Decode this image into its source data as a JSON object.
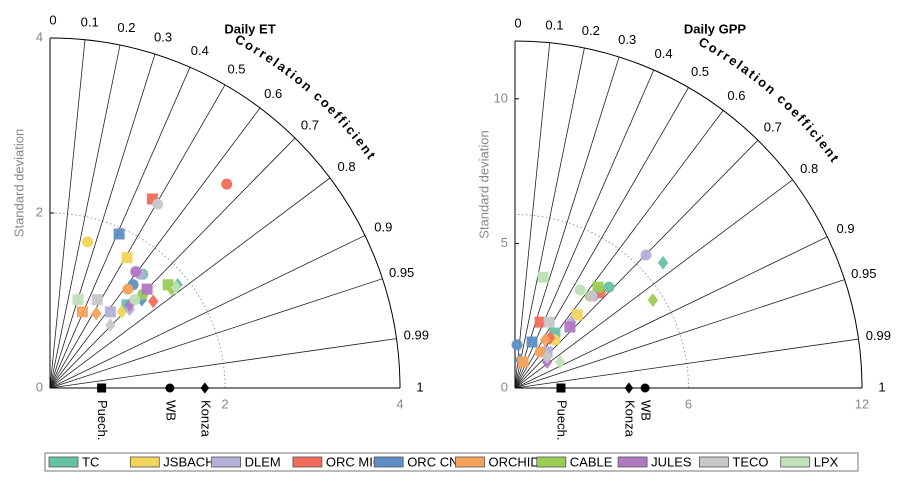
{
  "models": [
    {
      "name": "TC",
      "color": "#66c2a5"
    },
    {
      "name": "JSBACH",
      "color": "#f3d55a"
    },
    {
      "name": "DLEM",
      "color": "#b3b0d9"
    },
    {
      "name": "ORC MICT",
      "color": "#f26b5b"
    },
    {
      "name": "ORC CNP",
      "color": "#5e8fc4"
    },
    {
      "name": "ORCHIDEE",
      "color": "#f5a35a"
    },
    {
      "name": "CABLE",
      "color": "#9acd55"
    },
    {
      "name": "JULES",
      "color": "#b278c2"
    },
    {
      "name": "TECO",
      "color": "#c8c8c8"
    },
    {
      "name": "LPX",
      "color": "#bfe0b8"
    }
  ],
  "chart_data": [
    {
      "type": "taylor",
      "title": "Daily ET",
      "ylabel": "Standard deviation",
      "corr_label": "Correlation coefficient",
      "xlim": [
        0,
        4
      ],
      "xticks": [
        2,
        4
      ],
      "ylim": [
        0,
        4
      ],
      "yticks": [
        0,
        2,
        4
      ],
      "corr_ticks": [
        0,
        0.1,
        0.2,
        0.3,
        0.4,
        0.5,
        0.6,
        0.7,
        0.8,
        0.9,
        0.95,
        0.99,
        1
      ],
      "reference": {
        "names": [
          "Puech.",
          "WB",
          "Konza"
        ],
        "markers": [
          "square",
          "circle",
          "diamond"
        ],
        "values": [
          0.59,
          1.37,
          1.77
        ]
      },
      "series": [
        {
          "x": [
            0.88,
            1.06,
            1.46
          ],
          "values": [
            0.95,
            1.3,
            1.18
          ]
        },
        {
          "x": [
            0.88,
            0.43,
            0.82
          ],
          "values": [
            1.49,
            1.67,
            0.87
          ]
        },
        {
          "x": [
            0.69,
            1.03,
            0.91
          ],
          "values": [
            0.87,
            1.3,
            0.9
          ]
        },
        {
          "x": [
            1.17,
            2.02,
            1.18
          ],
          "values": [
            2.16,
            2.33,
            0.99
          ]
        },
        {
          "x": [
            0.79,
            0.95,
            1.05
          ],
          "values": [
            1.76,
            1.18,
            1.01
          ]
        },
        {
          "x": [
            0.37,
            0.89,
            0.53
          ],
          "values": [
            0.87,
            1.13,
            0.85
          ]
        },
        {
          "x": [
            1.35,
            1.06,
            1.39
          ],
          "values": [
            1.18,
            1.07,
            1.13
          ]
        },
        {
          "x": [
            1.11,
            0.98,
            0.91
          ],
          "values": [
            1.13,
            1.33,
            0.95
          ]
        },
        {
          "x": [
            0.54,
            1.23,
            0.69
          ],
          "values": [
            1.01,
            2.1,
            0.72
          ]
        },
        {
          "x": [
            0.32,
            0.97,
            1.44
          ],
          "values": [
            1.01,
            1.01,
            1.15
          ]
        }
      ]
    },
    {
      "type": "taylor",
      "title": "Daily GPP",
      "ylabel": "Standard deviation",
      "corr_label": "Correlation coefficient",
      "xlim": [
        0,
        12
      ],
      "xticks": [
        6,
        12
      ],
      "ylim": [
        0,
        12
      ],
      "yticks": [
        0,
        5,
        10
      ],
      "corr_ticks": [
        0,
        0.1,
        0.2,
        0.3,
        0.4,
        0.5,
        0.6,
        0.7,
        0.8,
        0.9,
        0.95,
        0.99,
        1
      ],
      "reference": {
        "names": [
          "Puech.",
          "WB",
          "Konza"
        ],
        "markers": [
          "square",
          "circle",
          "diamond"
        ],
        "values": [
          1.59,
          4.5,
          3.94
        ]
      },
      "series": [
        {
          "x": [
            1.38,
            3.25,
            5.12
          ],
          "values": [
            1.9,
            3.49,
            4.33
          ]
        },
        {
          "x": [
            2.15,
            1.38,
            2.87
          ],
          "values": [
            2.53,
            1.66,
            3.39
          ]
        },
        {
          "x": [
            1.11,
            4.53,
            1.94
          ],
          "values": [
            1.25,
            4.6,
            2.28
          ]
        },
        {
          "x": [
            0.87,
            2.94,
            1.21
          ],
          "values": [
            2.28,
            3.29,
            1.73
          ]
        },
        {
          "x": [
            0.59,
            0.07,
            0.17
          ],
          "values": [
            1.59,
            1.49,
            0.97
          ]
        },
        {
          "x": [
            0.28,
            0.87,
            1.04
          ],
          "values": [
            0.9,
            1.25,
            1.66
          ]
        },
        {
          "x": [
            2.87,
            2.6,
            4.77
          ],
          "values": [
            3.49,
            3.18,
            3.04
          ]
        },
        {
          "x": [
            1.9,
            2.7,
            1.11
          ],
          "values": [
            2.11,
            3.18,
            0.9
          ]
        },
        {
          "x": [
            1.18,
            2.66,
            1.11
          ],
          "values": [
            2.28,
            3.18,
            1.07
          ]
        },
        {
          "x": [
            0.97,
            2.25,
            1.56
          ],
          "values": [
            3.83,
            3.39,
            0.9
          ]
        }
      ]
    }
  ]
}
